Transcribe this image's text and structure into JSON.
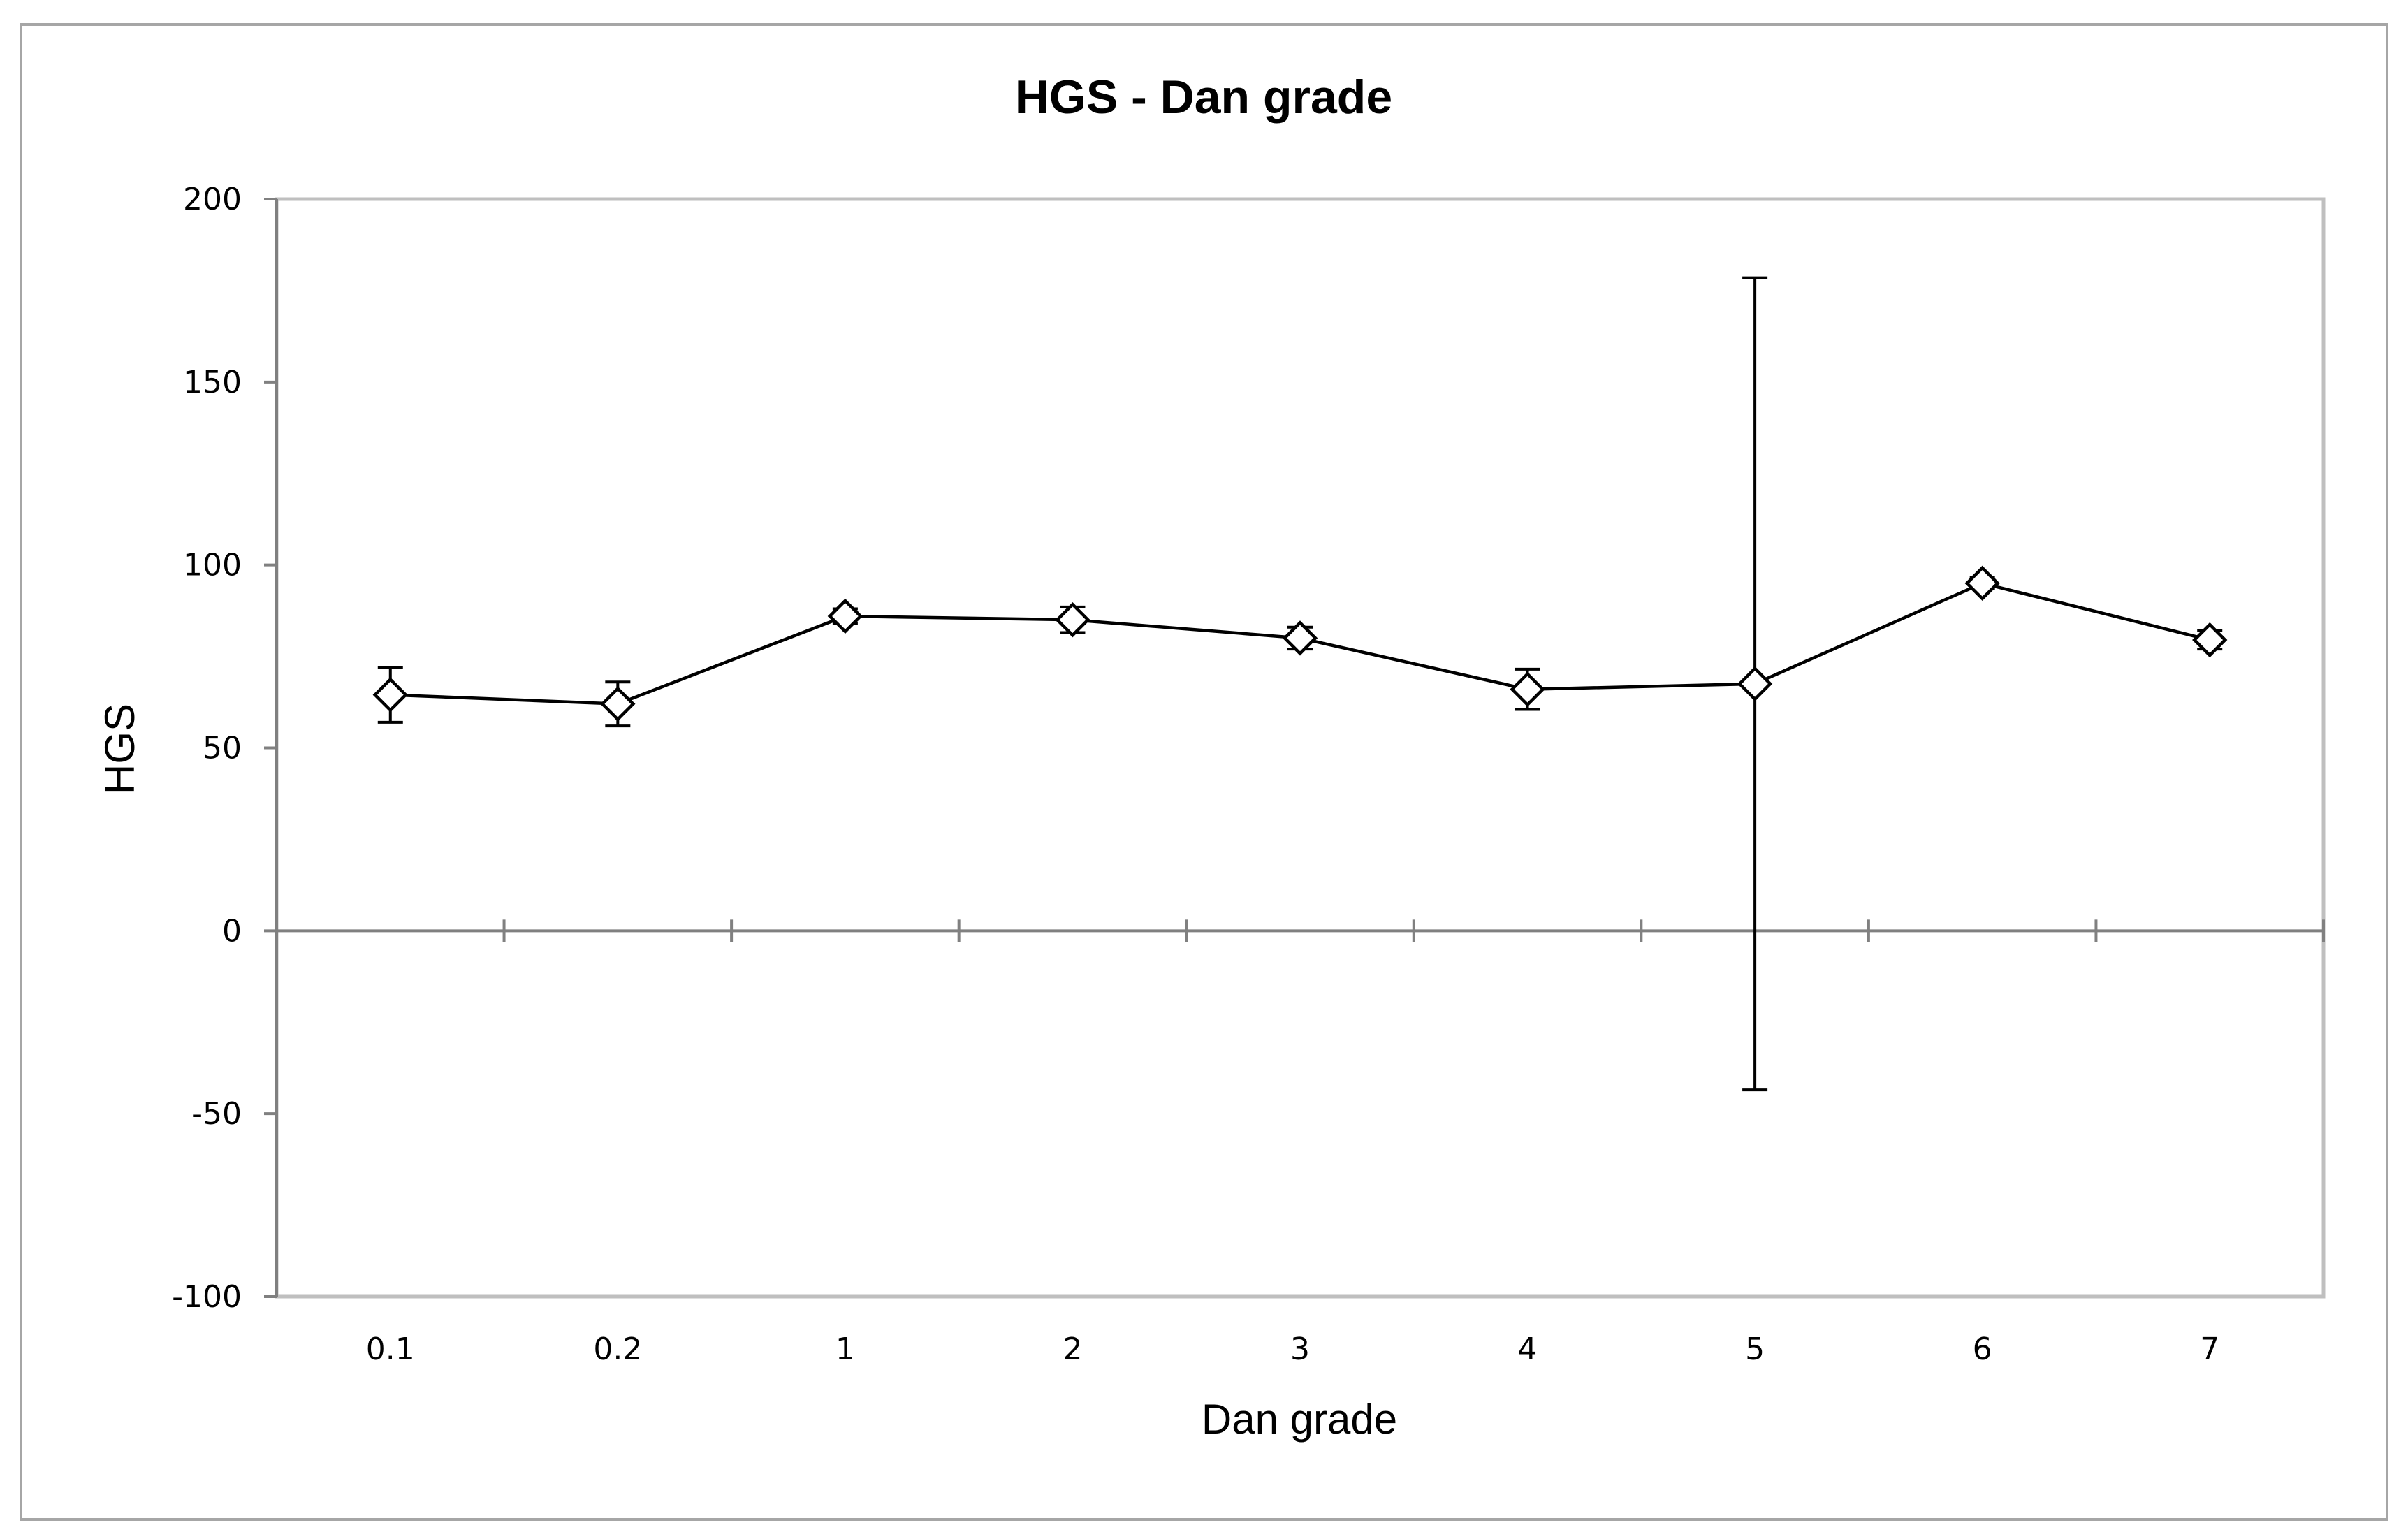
{
  "chart_data": {
    "type": "line",
    "title": "HGS - Dan grade",
    "xlabel": "Dan grade",
    "ylabel": "HGS",
    "categories": [
      "0.1",
      "0.2",
      "1",
      "2",
      "3",
      "4",
      "5",
      "6",
      "7"
    ],
    "ylim": [
      -100,
      200
    ],
    "yticks": [
      "200",
      "150",
      "100",
      "50",
      "0",
      "-50",
      "-100"
    ],
    "grid": false,
    "legend": "none",
    "marker": "diamond-open",
    "series": [
      {
        "values": [
          64.5,
          62,
          86,
          85,
          80,
          66,
          67.5,
          95,
          79.5
        ],
        "error": [
          7.5,
          6,
          2,
          3.5,
          3,
          5.5,
          111,
          1.5,
          2.5
        ]
      }
    ],
    "colors": {
      "line": "#000000",
      "marker_fill": "#ffffff",
      "plot_border": "#bfbfbf",
      "axis": "#808080",
      "frame": "#a6a6a6"
    }
  }
}
